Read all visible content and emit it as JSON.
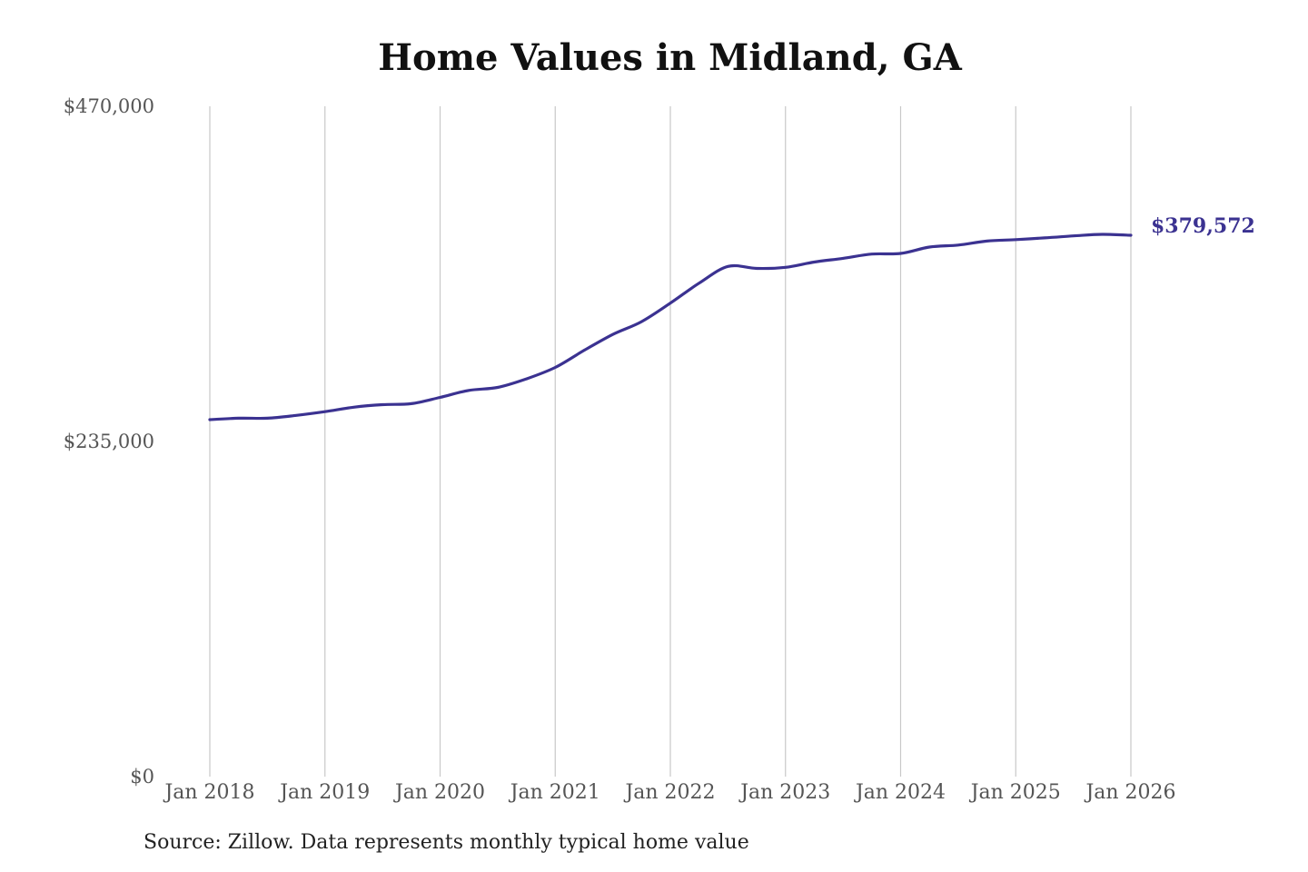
{
  "chart_data": {
    "type": "line",
    "title": "Home Values in Midland, GA",
    "xlabel": "",
    "ylabel": "",
    "ylim": [
      0,
      470000
    ],
    "yticks": [
      {
        "value": 0,
        "label": "$0"
      },
      {
        "value": 235000,
        "label": "$235,000"
      },
      {
        "value": 470000,
        "label": "$470,000"
      }
    ],
    "xlim": [
      2018.0,
      2026.0
    ],
    "xticks": [
      {
        "value": 2018,
        "label": "Jan 2018"
      },
      {
        "value": 2019,
        "label": "Jan 2019"
      },
      {
        "value": 2020,
        "label": "Jan 2020"
      },
      {
        "value": 2021,
        "label": "Jan 2021"
      },
      {
        "value": 2022,
        "label": "Jan 2022"
      },
      {
        "value": 2023,
        "label": "Jan 2023"
      },
      {
        "value": 2024,
        "label": "Jan 2024"
      },
      {
        "value": 2025,
        "label": "Jan 2025"
      },
      {
        "value": 2026,
        "label": "Jan 2026"
      }
    ],
    "grid": "vertical",
    "series": [
      {
        "color": "#3b3291",
        "x": [
          2018.0,
          2018.25,
          2018.5,
          2018.75,
          2019.0,
          2019.25,
          2019.5,
          2019.75,
          2020.0,
          2020.25,
          2020.5,
          2020.75,
          2021.0,
          2021.25,
          2021.5,
          2021.75,
          2022.0,
          2022.25,
          2022.5,
          2022.75,
          2023.0,
          2023.25,
          2023.5,
          2023.75,
          2024.0,
          2024.25,
          2024.5,
          2024.75,
          2025.0,
          2025.25,
          2025.5,
          2025.75,
          2026.0
        ],
        "y": [
          250300,
          251300,
          251300,
          253300,
          255900,
          259000,
          260800,
          261500,
          265900,
          270800,
          272900,
          278900,
          286900,
          298800,
          310000,
          319000,
          332000,
          346000,
          357700,
          356300,
          357100,
          360800,
          363400,
          366400,
          366800,
          371300,
          372700,
          375500,
          376500,
          377700,
          379100,
          380200,
          379572
        ]
      }
    ],
    "end_label": "$379,572"
  },
  "source_note": "Source: Zillow. Data represents monthly typical home value"
}
